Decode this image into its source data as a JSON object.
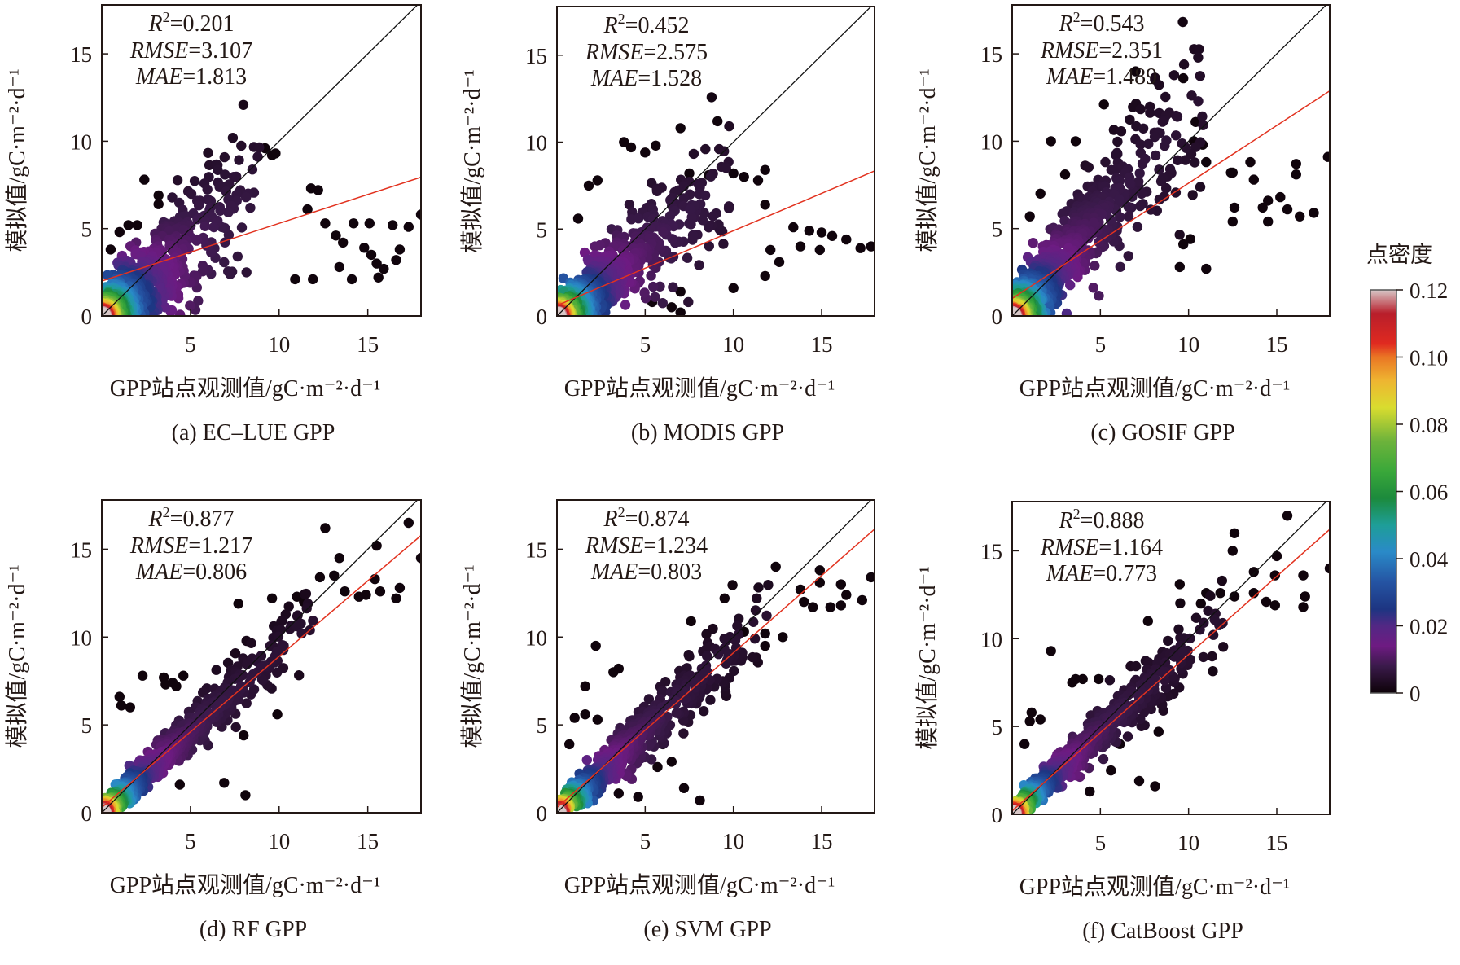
{
  "figure": {
    "colorbar": {
      "title": "点密度",
      "ticks": [
        "0",
        "0.02",
        "0.04",
        "0.06",
        "0.08",
        "0.10",
        "0.12"
      ],
      "tick_values": [
        0,
        0.02,
        0.04,
        0.06,
        0.08,
        0.1,
        0.12
      ],
      "range": [
        0,
        0.12
      ],
      "colormap_stops": [
        {
          "v": 0.0,
          "color": "#0d0208"
        },
        {
          "v": 0.008,
          "color": "#3a1a4a"
        },
        {
          "v": 0.014,
          "color": "#6e1b82"
        },
        {
          "v": 0.02,
          "color": "#522884"
        },
        {
          "v": 0.025,
          "color": "#1d3582"
        },
        {
          "v": 0.033,
          "color": "#2554a3"
        },
        {
          "v": 0.042,
          "color": "#2a8ac8"
        },
        {
          "v": 0.05,
          "color": "#1e9e98"
        },
        {
          "v": 0.058,
          "color": "#1c8a3c"
        },
        {
          "v": 0.066,
          "color": "#3aa83a"
        },
        {
          "v": 0.075,
          "color": "#6db33b"
        },
        {
          "v": 0.085,
          "color": "#d9dc2f"
        },
        {
          "v": 0.093,
          "color": "#eeb531"
        },
        {
          "v": 0.1,
          "color": "#ea7624"
        },
        {
          "v": 0.104,
          "color": "#e02a20"
        },
        {
          "v": 0.113,
          "color": "#b81e2b"
        },
        {
          "v": 0.12,
          "color": "#d8c8c8"
        }
      ]
    }
  },
  "chart_data": [
    {
      "type": "scatter",
      "panel": "a",
      "caption": "(a) EC–LUE GPP",
      "xlabel": "GPP站点观测值/gC·m⁻²·d⁻¹",
      "ylabel": "模拟值/gC·m⁻²·d⁻¹",
      "xlim": [
        0,
        18
      ],
      "ylim": [
        0,
        17.8
      ],
      "xticks": [
        5,
        10,
        15
      ],
      "yticks": [
        0,
        5,
        10,
        15
      ],
      "stats": {
        "r2_label": "R",
        "r2_sup": "2",
        "r2": "=0.201",
        "rmse_label": "RMSE",
        "rmse": "=3.107",
        "mae_label": "MAE",
        "mae": "=1.813"
      },
      "one_to_one": true,
      "fit_line": {
        "slope": 0.33,
        "intercept": 2.0
      },
      "point_cloud": {
        "n": 720,
        "spread_x": [
          0,
          9
        ],
        "slope": 0.85,
        "scatter": 2.2,
        "outliers": [
          [
            9.2,
            9.6
          ],
          [
            9.6,
            9.2
          ],
          [
            9.8,
            9.3
          ],
          [
            2.4,
            7.8
          ],
          [
            3.2,
            6.9
          ],
          [
            3.2,
            6.4
          ],
          [
            11.8,
            7.3
          ],
          [
            12.2,
            7.2
          ],
          [
            11.6,
            6.1
          ],
          [
            12.6,
            5.3
          ],
          [
            14.2,
            5.3
          ],
          [
            15.1,
            5.3
          ],
          [
            16.4,
            5.2
          ],
          [
            17.3,
            5.1
          ],
          [
            18.0,
            5.8
          ],
          [
            14.8,
            3.9
          ],
          [
            15.2,
            3.5
          ],
          [
            16.8,
            3.8
          ],
          [
            16.6,
            3.2
          ],
          [
            13.2,
            4.6
          ],
          [
            13.6,
            4.2
          ],
          [
            15.5,
            3.0
          ],
          [
            14.1,
            2.1
          ],
          [
            13.4,
            2.8
          ],
          [
            10.9,
            2.1
          ],
          [
            11.9,
            2.1
          ],
          [
            15.6,
            2.2
          ],
          [
            15.9,
            2.7
          ],
          [
            1.0,
            4.8
          ],
          [
            0.5,
            3.8
          ],
          [
            1.5,
            5.2
          ],
          [
            2.0,
            5.2
          ]
        ]
      }
    },
    {
      "type": "scatter",
      "panel": "b",
      "caption": "(b) MODIS GPP",
      "xlabel": "GPP站点观测值/gC·m⁻²·d⁻¹",
      "ylabel": "模拟值/gC·m⁻²·d⁻¹",
      "xlim": [
        0,
        18
      ],
      "ylim": [
        0,
        17.8
      ],
      "xticks": [
        5,
        10,
        15
      ],
      "yticks": [
        0,
        5,
        10,
        15
      ],
      "stats": {
        "r2_label": "R",
        "r2_sup": "2",
        "r2": "=0.452",
        "rmse_label": "RMSE",
        "rmse": "=2.575",
        "mae_label": "MAE",
        "mae": "=1.528"
      },
      "one_to_one": true,
      "fit_line": {
        "slope": 0.43,
        "intercept": 0.6
      },
      "point_cloud": {
        "n": 720,
        "spread_x": [
          0,
          10
        ],
        "slope": 0.8,
        "scatter": 2.0,
        "outliers": [
          [
            9.1,
            11.2
          ],
          [
            7.0,
            10.8
          ],
          [
            3.8,
            10.0
          ],
          [
            4.2,
            9.7
          ],
          [
            5.0,
            9.4
          ],
          [
            5.6,
            9.8
          ],
          [
            1.8,
            7.5
          ],
          [
            2.3,
            7.8
          ],
          [
            7.5,
            8.2
          ],
          [
            8.6,
            8.1
          ],
          [
            10.0,
            8.2
          ],
          [
            10.6,
            8.0
          ],
          [
            11.8,
            8.4
          ],
          [
            11.4,
            7.8
          ],
          [
            11.8,
            6.4
          ],
          [
            13.4,
            5.1
          ],
          [
            14.3,
            4.9
          ],
          [
            15.0,
            4.8
          ],
          [
            15.6,
            4.6
          ],
          [
            16.4,
            4.4
          ],
          [
            17.2,
            3.9
          ],
          [
            17.8,
            4.0
          ],
          [
            14.9,
            3.8
          ],
          [
            13.8,
            4.0
          ],
          [
            12.1,
            3.8
          ],
          [
            12.6,
            3.1
          ],
          [
            11.8,
            2.3
          ],
          [
            10.0,
            1.6
          ],
          [
            7.0,
            1.4
          ],
          [
            5.4,
            0.8
          ],
          [
            6.5,
            0.5
          ],
          [
            7.0,
            0.2
          ],
          [
            1.2,
            5.6
          ]
        ]
      }
    },
    {
      "type": "scatter",
      "panel": "c",
      "caption": "(c) GOSIF GPP",
      "xlabel": "GPP站点观测值/gC·m⁻²·d⁻¹",
      "ylabel": "模拟值/gC·m⁻²·d⁻¹",
      "xlim": [
        0,
        18
      ],
      "ylim": [
        0,
        17.8
      ],
      "xticks": [
        5,
        10,
        15
      ],
      "yticks": [
        0,
        5,
        10,
        15
      ],
      "stats": {
        "r2_label": "R",
        "r2_sup": "2",
        "r2": "=0.543",
        "rmse_label": "RMSE",
        "rmse": "=2.351",
        "mae_label": "MAE",
        "mae": "=1.489"
      },
      "one_to_one": true,
      "fit_line": {
        "slope": 0.66,
        "intercept": 1.0
      },
      "point_cloud": {
        "n": 760,
        "spread_x": [
          0,
          11
        ],
        "slope": 1.15,
        "scatter": 2.4,
        "outliers": [
          [
            7.0,
            14.0
          ],
          [
            9.7,
            13.6
          ],
          [
            5.2,
            12.1
          ],
          [
            2.2,
            10.0
          ],
          [
            3.6,
            10.0
          ],
          [
            10.4,
            11.1
          ],
          [
            10.3,
            10.0
          ],
          [
            10.8,
            9.8
          ],
          [
            11.0,
            8.8
          ],
          [
            13.5,
            8.8
          ],
          [
            16.1,
            8.7
          ],
          [
            17.9,
            9.1
          ],
          [
            12.4,
            8.2
          ],
          [
            12.5,
            8.2
          ],
          [
            13.7,
            7.8
          ],
          [
            16.1,
            8.1
          ],
          [
            14.5,
            6.6
          ],
          [
            15.2,
            6.8
          ],
          [
            14.2,
            6.2
          ],
          [
            15.6,
            6.1
          ],
          [
            17.1,
            5.9
          ],
          [
            16.3,
            5.7
          ],
          [
            12.6,
            6.2
          ],
          [
            12.5,
            5.4
          ],
          [
            14.5,
            5.4
          ],
          [
            9.7,
            4.1
          ],
          [
            10.1,
            4.4
          ],
          [
            9.5,
            2.8
          ],
          [
            11.0,
            2.7
          ],
          [
            1.0,
            5.7
          ],
          [
            1.6,
            7.0
          ],
          [
            3.0,
            8.1
          ]
        ]
      }
    },
    {
      "type": "scatter",
      "panel": "d",
      "caption": "(d) RF GPP",
      "xlabel": "GPP站点观测值/gC·m⁻²·d⁻¹",
      "ylabel": "模拟值/gC·m⁻²·d⁻¹",
      "xlim": [
        0,
        18
      ],
      "ylim": [
        0,
        17.8
      ],
      "xticks": [
        5,
        10,
        15
      ],
      "yticks": [
        0,
        5,
        10,
        15
      ],
      "stats": {
        "r2_label": "R",
        "r2_sup": "2",
        "r2": "=0.877",
        "rmse_label": "RMSE",
        "rmse": "=1.217",
        "mae_label": "MAE",
        "mae": "=0.806"
      },
      "one_to_one": true,
      "fit_line": {
        "slope": 0.86,
        "intercept": 0.3
      },
      "point_cloud": {
        "n": 760,
        "spread_x": [
          0,
          12
        ],
        "slope": 0.92,
        "scatter": 1.0,
        "outliers": [
          [
            12.6,
            16.2
          ],
          [
            17.3,
            16.5
          ],
          [
            15.5,
            15.2
          ],
          [
            13.4,
            14.5
          ],
          [
            18.0,
            14.5
          ],
          [
            12.3,
            13.4
          ],
          [
            13.1,
            13.5
          ],
          [
            15.4,
            13.3
          ],
          [
            16.8,
            12.8
          ],
          [
            14.5,
            12.3
          ],
          [
            13.7,
            12.6
          ],
          [
            11.0,
            12.3
          ],
          [
            9.6,
            12.2
          ],
          [
            11.4,
            12.0
          ],
          [
            7.7,
            11.9
          ],
          [
            14.9,
            12.4
          ],
          [
            15.7,
            12.6
          ],
          [
            16.6,
            12.2
          ],
          [
            2.3,
            7.8
          ],
          [
            3.5,
            7.7
          ],
          [
            4.6,
            7.8
          ],
          [
            3.6,
            7.3
          ],
          [
            4.0,
            7.4
          ],
          [
            4.2,
            7.2
          ],
          [
            1.0,
            6.6
          ],
          [
            1.1,
            6.1
          ],
          [
            1.6,
            6.0
          ],
          [
            8.0,
            4.4
          ],
          [
            9.9,
            5.6
          ],
          [
            6.9,
            1.7
          ],
          [
            8.1,
            1.0
          ],
          [
            4.4,
            1.6
          ],
          [
            2.3,
            1.4
          ]
        ]
      }
    },
    {
      "type": "scatter",
      "panel": "e",
      "caption": "(e) SVM GPP",
      "xlabel": "GPP站点观测值/gC·m⁻²·d⁻¹",
      "ylabel": "模拟值/gC·m⁻²·d⁻¹",
      "xlim": [
        0,
        18
      ],
      "ylim": [
        0,
        17.8
      ],
      "xticks": [
        5,
        10,
        15
      ],
      "yticks": [
        0,
        5,
        10,
        15
      ],
      "stats": {
        "r2_label": "R",
        "r2_sup": "2",
        "r2": "=0.874",
        "rmse_label": "RMSE",
        "rmse": "=1.234",
        "mae_label": "MAE",
        "mae": "=0.803"
      },
      "one_to_one": true,
      "fit_line": {
        "slope": 0.88,
        "intercept": 0.3
      },
      "point_cloud": {
        "n": 760,
        "spread_x": [
          0,
          12
        ],
        "slope": 0.95,
        "scatter": 1.05,
        "outliers": [
          [
            12.4,
            14.0
          ],
          [
            14.9,
            13.8
          ],
          [
            17.8,
            13.4
          ],
          [
            14.9,
            13.1
          ],
          [
            16.1,
            13.0
          ],
          [
            13.8,
            12.7
          ],
          [
            16.4,
            12.4
          ],
          [
            17.3,
            12.1
          ],
          [
            14.0,
            12.0
          ],
          [
            14.5,
            11.7
          ],
          [
            15.5,
            11.7
          ],
          [
            16.1,
            11.8
          ],
          [
            9.5,
            12.2
          ],
          [
            7.6,
            10.9
          ],
          [
            10.6,
            10.3
          ],
          [
            11.8,
            10.2
          ],
          [
            12.8,
            10.0
          ],
          [
            11.8,
            9.5
          ],
          [
            2.2,
            9.5
          ],
          [
            3.5,
            8.2
          ],
          [
            3.2,
            8.0
          ],
          [
            1.6,
            7.2
          ],
          [
            1.0,
            5.4
          ],
          [
            1.6,
            5.6
          ],
          [
            2.3,
            5.3
          ],
          [
            0.7,
            3.9
          ],
          [
            6.0,
            3.9
          ],
          [
            6.5,
            2.9
          ],
          [
            5.7,
            2.6
          ],
          [
            7.2,
            1.4
          ],
          [
            8.1,
            0.7
          ],
          [
            3.5,
            1.1
          ],
          [
            4.6,
            0.9
          ]
        ]
      }
    },
    {
      "type": "scatter",
      "panel": "f",
      "caption": "(f) CatBoost GPP",
      "xlabel": "GPP站点观测值/gC·m⁻²·d⁻¹",
      "ylabel": "模拟值/gC·m⁻²·d⁻¹",
      "xlim": [
        0,
        18
      ],
      "ylim": [
        0,
        17.8
      ],
      "xticks": [
        5,
        10,
        15
      ],
      "yticks": [
        0,
        5,
        10,
        15
      ],
      "stats": {
        "r2_label": "R",
        "r2_sup": "2",
        "r2": "=0.888",
        "rmse_label": "RMSE",
        "rmse": "=1.164",
        "mae_label": "MAE",
        "mae": "=0.773"
      },
      "one_to_one": true,
      "fit_line": {
        "slope": 0.89,
        "intercept": 0.2
      },
      "point_cloud": {
        "n": 760,
        "spread_x": [
          0,
          12
        ],
        "slope": 0.95,
        "scatter": 0.95,
        "outliers": [
          [
            15.6,
            17.0
          ],
          [
            12.6,
            16.0
          ],
          [
            12.5,
            15.0
          ],
          [
            15.0,
            14.7
          ],
          [
            18.0,
            14.0
          ],
          [
            13.7,
            13.8
          ],
          [
            16.5,
            13.6
          ],
          [
            14.9,
            13.6
          ],
          [
            9.5,
            13.1
          ],
          [
            11.0,
            12.6
          ],
          [
            11.8,
            12.6
          ],
          [
            12.6,
            12.4
          ],
          [
            13.7,
            12.6
          ],
          [
            10.7,
            12.0
          ],
          [
            14.4,
            12.1
          ],
          [
            16.6,
            12.4
          ],
          [
            14.9,
            11.9
          ],
          [
            16.5,
            11.8
          ],
          [
            7.7,
            11.0
          ],
          [
            2.2,
            9.3
          ],
          [
            3.6,
            7.7
          ],
          [
            4.0,
            7.7
          ],
          [
            4.9,
            7.7
          ],
          [
            3.4,
            7.5
          ],
          [
            1.1,
            5.8
          ],
          [
            1.0,
            5.3
          ],
          [
            1.6,
            5.4
          ],
          [
            0.7,
            4.0
          ],
          [
            6.1,
            4.0
          ],
          [
            8.3,
            4.7
          ],
          [
            5.6,
            2.5
          ],
          [
            7.2,
            1.9
          ],
          [
            8.1,
            1.6
          ],
          [
            4.4,
            1.3
          ]
        ]
      }
    }
  ]
}
